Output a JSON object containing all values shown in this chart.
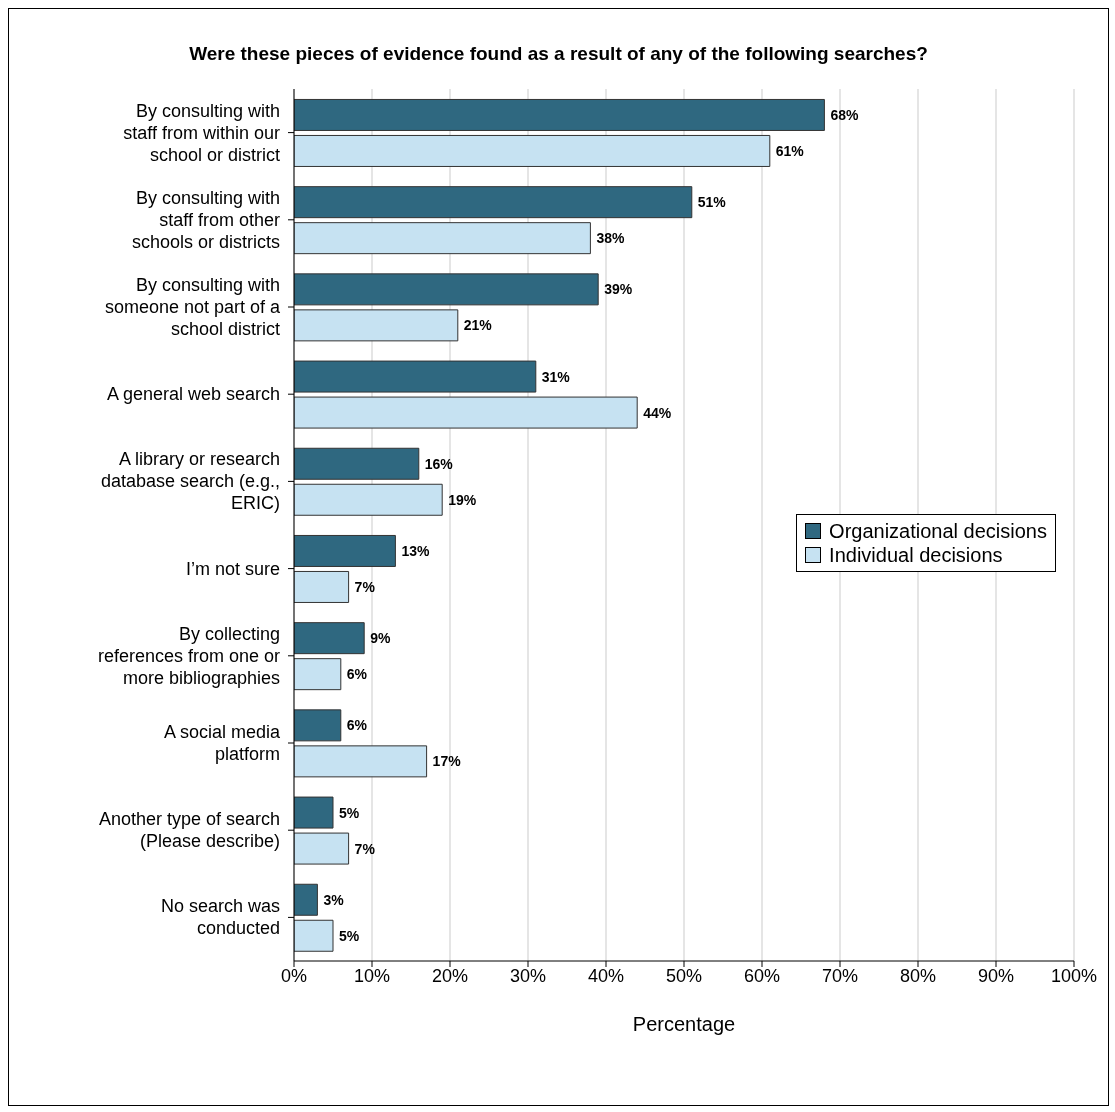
{
  "chart_data": {
    "type": "bar",
    "orientation": "horizontal",
    "title": "Were these pieces of evidence found as a result of any of the following searches?",
    "xlabel": "Percentage",
    "categories": [
      "By consulting with staff from within our school or district",
      "By consulting with staff from other schools or districts",
      "By consulting with someone not part of a school district",
      "A general web search",
      "A library or research database search (e.g., ERIC)",
      "I’m not sure",
      "By collecting references from one or more bibliographies",
      "A social media platform",
      "Another type of search (Please describe)",
      "No search was conducted"
    ],
    "series": [
      {
        "name": "Organizational decisions",
        "color": "#2f6880",
        "values": [
          68,
          51,
          39,
          31,
          16,
          13,
          9,
          6,
          5,
          3
        ],
        "value_labels": [
          "68%",
          "51%",
          "39%",
          "31%",
          "16%",
          "13%",
          "9%",
          "6%",
          "5%",
          "3%"
        ]
      },
      {
        "name": "Individual decisions",
        "color": "#c6e2f2",
        "values": [
          61,
          38,
          21,
          44,
          19,
          7,
          6,
          17,
          7,
          5
        ],
        "value_labels": [
          "61%",
          "38%",
          "21%",
          "44%",
          "19%",
          "7%",
          "6%",
          "17%",
          "7%",
          "5%"
        ]
      }
    ],
    "xlim": [
      0,
      100
    ],
    "xticks": [
      {
        "value": 0,
        "label": "0%"
      },
      {
        "value": 10,
        "label": "10%"
      },
      {
        "value": 20,
        "label": "20%"
      },
      {
        "value": 30,
        "label": "30%"
      },
      {
        "value": 40,
        "label": "40%"
      },
      {
        "value": 50,
        "label": "50%"
      },
      {
        "value": 60,
        "label": "60%"
      },
      {
        "value": 70,
        "label": "70%"
      },
      {
        "value": 80,
        "label": "80%"
      },
      {
        "value": 90,
        "label": "90%"
      },
      {
        "value": 100,
        "label": "100%"
      }
    ],
    "grid": "x",
    "legend": "right"
  }
}
